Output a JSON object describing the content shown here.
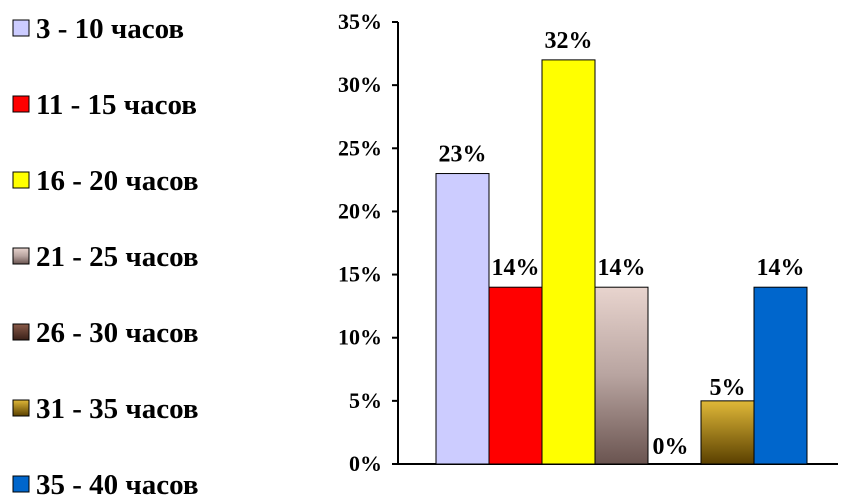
{
  "chart_data": {
    "type": "bar",
    "title": "",
    "xlabel": "",
    "ylabel": "",
    "ylim": [
      0,
      35
    ],
    "yticks": [
      "0%",
      "5%",
      "10%",
      "15%",
      "20%",
      "25%",
      "30%",
      "35%"
    ],
    "grid": false,
    "legend_position": "left",
    "series": [
      {
        "name": "3 - 10 часов",
        "value": 23,
        "label": "23%",
        "color": "#ccccff"
      },
      {
        "name": "11 - 15 часов",
        "value": 14,
        "label": "14%",
        "color": "#ff0000"
      },
      {
        "name": "16 - 20 часов",
        "value": 32,
        "label": "32%",
        "color": "#ffff00"
      },
      {
        "name": "21 - 25 часов",
        "value": 14,
        "label": "14%",
        "color": "#d8bfb8"
      },
      {
        "name": "26 - 30 часов",
        "value": 0,
        "label": "0%",
        "color": "#5a3a2a"
      },
      {
        "name": "31 - 35 часов",
        "value": 5,
        "label": "5%",
        "color": "#c8a020"
      },
      {
        "name": "35 - 40 часов",
        "value": 14,
        "label": "14%",
        "color": "#0066cc"
      }
    ]
  }
}
